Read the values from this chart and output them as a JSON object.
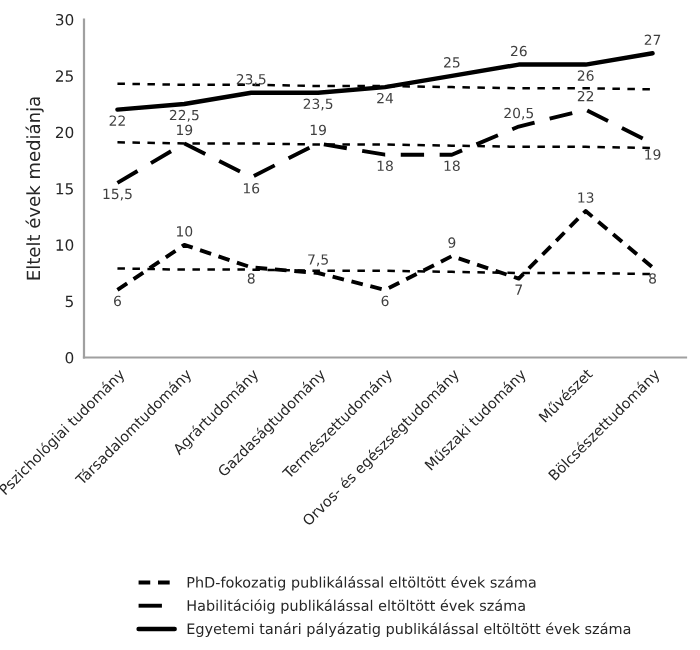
{
  "chart_data": {
    "type": "line",
    "ylabel": "Eltelt évek mediánja",
    "categories": [
      "Pszichológiai tudomány",
      "Társadalomtudomány",
      "Agrártudomány",
      "Gazdaságtudomány",
      "Természettudomány",
      "Orvos- és egészségtudomány",
      "Műszaki tudomány",
      "Művészet",
      "Bölcsészettudomány"
    ],
    "series": [
      {
        "name": "PhD-fokozatig publikálással eltöltött évek száma",
        "color": "#000000",
        "line_style": "dashed",
        "values": [
          6,
          10,
          8,
          7.5,
          6,
          9,
          7,
          13,
          8
        ],
        "value_labels": [
          "6",
          "10",
          "8",
          "7,5",
          "6",
          "9",
          "7",
          "13",
          "8"
        ]
      },
      {
        "name": "Habilitációig publikálással eltöltött évek száma",
        "color": "#000000",
        "line_style": "dashed",
        "values": [
          15.5,
          19,
          16,
          19,
          18,
          18,
          20.5,
          22,
          19
        ],
        "value_labels": [
          "15,5",
          "19",
          "16",
          "19",
          "18",
          "18",
          "20,5",
          "22",
          "19"
        ]
      },
      {
        "name": "Egyetemi tanári pályázatig publikálással eltöltött évek száma",
        "color": "#000000",
        "line_style": "solid",
        "values": [
          22,
          22.5,
          23.5,
          23.5,
          24,
          25,
          26,
          26,
          27
        ],
        "value_labels": [
          "22",
          "22,5",
          "23,5",
          "23,5",
          "24",
          "25",
          "26",
          "26",
          "27"
        ]
      },
      {
        "type": "line",
        "color": "#000000",
        "line_style": "dotted",
        "values": [
          7.9,
          7.8,
          7.8,
          7.7,
          7.7,
          7.6,
          7.5,
          7.5,
          7.4
        ]
      },
      {
        "type": "line",
        "color": "#000000",
        "line_style": "dotted",
        "values": [
          19.1,
          19.0,
          19.0,
          18.9,
          18.9,
          18.8,
          18.7,
          18.7,
          18.6
        ]
      },
      {
        "type": "line",
        "color": "#000000",
        "line_style": "dotted",
        "values": [
          24.3,
          24.2,
          24.2,
          24.1,
          24.1,
          24.0,
          23.9,
          23.9,
          23.8
        ]
      }
    ],
    "ylim": [
      0,
      30
    ],
    "yticks": [
      0,
      5,
      10,
      15,
      20,
      25,
      30
    ],
    "grid": false,
    "legend": "bottom",
    "marker": "none"
  }
}
